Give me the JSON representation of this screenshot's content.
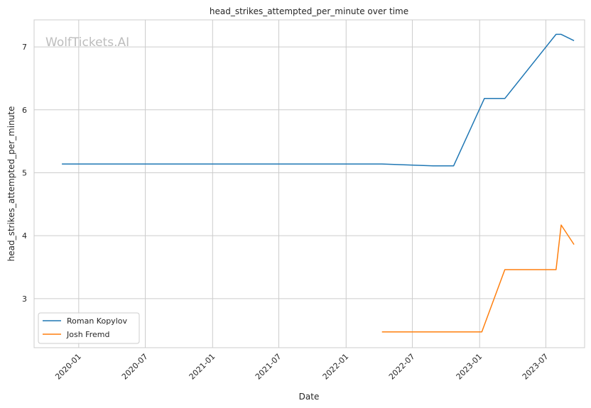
{
  "chart_data": {
    "type": "line",
    "title": "head_strikes_attempted_per_minute over time",
    "xlabel": "Date",
    "ylabel": "head_strikes_attempted_per_minute",
    "watermark": "WolfTickets.AI",
    "x_ticks": [
      "2020-01",
      "2020-07",
      "2021-01",
      "2021-07",
      "2022-01",
      "2022-07",
      "2023-01",
      "2023-07"
    ],
    "y_ticks": [
      3,
      4,
      5,
      6,
      7
    ],
    "xlim": [
      "2019-09-01",
      "2023-10-15"
    ],
    "ylim": [
      2.22,
      7.43
    ],
    "grid": true,
    "legend_position": "lower-left",
    "series": [
      {
        "name": "Roman Kopylov",
        "color": "#1f77b4",
        "points": [
          {
            "x": "2019-11-16",
            "y": 5.14
          },
          {
            "x": "2022-04-09",
            "y": 5.14
          },
          {
            "x": "2022-08-27",
            "y": 5.11
          },
          {
            "x": "2022-10-22",
            "y": 5.11
          },
          {
            "x": "2023-01-14",
            "y": 6.18
          },
          {
            "x": "2023-03-11",
            "y": 6.18
          },
          {
            "x": "2023-07-29",
            "y": 7.2
          },
          {
            "x": "2023-08-12",
            "y": 7.2
          },
          {
            "x": "2023-09-16",
            "y": 7.1
          }
        ]
      },
      {
        "name": "Josh Fremd",
        "color": "#ff7f0e",
        "points": [
          {
            "x": "2022-04-09",
            "y": 2.47
          },
          {
            "x": "2023-01-07",
            "y": 2.47
          },
          {
            "x": "2023-03-11",
            "y": 3.46
          },
          {
            "x": "2023-07-29",
            "y": 3.46
          },
          {
            "x": "2023-08-12",
            "y": 4.17
          },
          {
            "x": "2023-09-16",
            "y": 3.86
          }
        ]
      }
    ]
  }
}
